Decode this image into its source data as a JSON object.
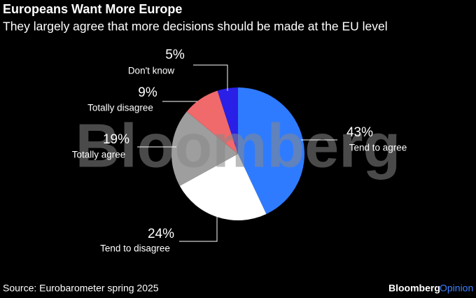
{
  "chart_data": {
    "type": "pie",
    "title": "Europeans Want More Europe",
    "subtitle": "They largely agree that more decisions should be made at the EU level",
    "categories": [
      "Tend to agree",
      "Tend to disagree",
      "Totally agree",
      "Totally disagree",
      "Don't know"
    ],
    "values": [
      43,
      24,
      19,
      9,
      5
    ],
    "value_labels": [
      "43%",
      "24%",
      "19%",
      "9%",
      "5%"
    ],
    "colors": [
      "#2f7bff",
      "#ffffff",
      "#9e9e9e",
      "#f0696b",
      "#2a1fe6"
    ],
    "source": "Source: Eurobarometer spring 2025",
    "watermark": "Bloomberg",
    "brand": "Bloomberg",
    "brand_suffix": "Opinion"
  }
}
